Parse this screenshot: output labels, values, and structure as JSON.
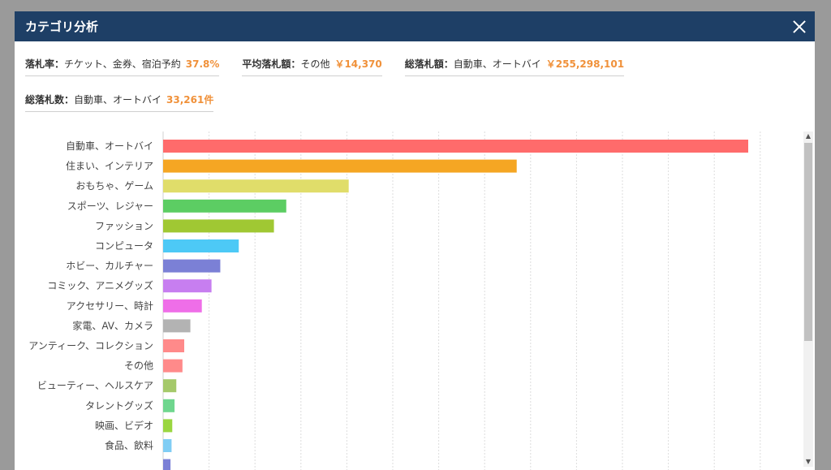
{
  "dialog": {
    "title": "カテゴリ分析"
  },
  "stats": [
    {
      "label": "落札率：",
      "category": "チケット、金券、宿泊予約",
      "value": "37.8%"
    },
    {
      "label": "平均落札額：",
      "category": "その他",
      "value": "￥14,370"
    },
    {
      "label": "総落札額：",
      "category": "自動車、オートバイ",
      "value": "￥255,298,101"
    },
    {
      "label": "総落札数：",
      "category": "自動車、オートバイ",
      "value": "33,261件"
    }
  ],
  "chart_data": {
    "type": "bar",
    "orientation": "horizontal",
    "categories": [
      "自動車、オートバイ",
      "住まい、インテリア",
      "おもちゃ、ゲーム",
      "スポーツ、レジャー",
      "ファッション",
      "コンピュータ",
      "ホビー、カルチャー",
      "コミック、アニメグッズ",
      "アクセサリー、時計",
      "家電、AV、カメラ",
      "アンティーク、コレクション",
      "その他",
      "ビューティー、ヘルスケア",
      "タレントグッズ",
      "映画、ビデオ",
      "食品、飲料",
      ""
    ],
    "values": [
      33261,
      20100,
      10550,
      7000,
      6300,
      4300,
      3250,
      2750,
      2200,
      1550,
      1200,
      1100,
      750,
      650,
      520,
      480,
      420
    ],
    "colors": [
      "#ff6b6b",
      "#f5a623",
      "#e0dd6a",
      "#5ccd63",
      "#a0c833",
      "#4dc9f6",
      "#7b80d6",
      "#c77ef0",
      "#ef6ee8",
      "#b3b3b3",
      "#ff8a8a",
      "#ff8a8a",
      "#a5c96a",
      "#6fd68e",
      "#9ad640",
      "#80cdf4",
      "#7b80d6"
    ],
    "xlim": [
      0,
      33261
    ],
    "grid": true
  }
}
